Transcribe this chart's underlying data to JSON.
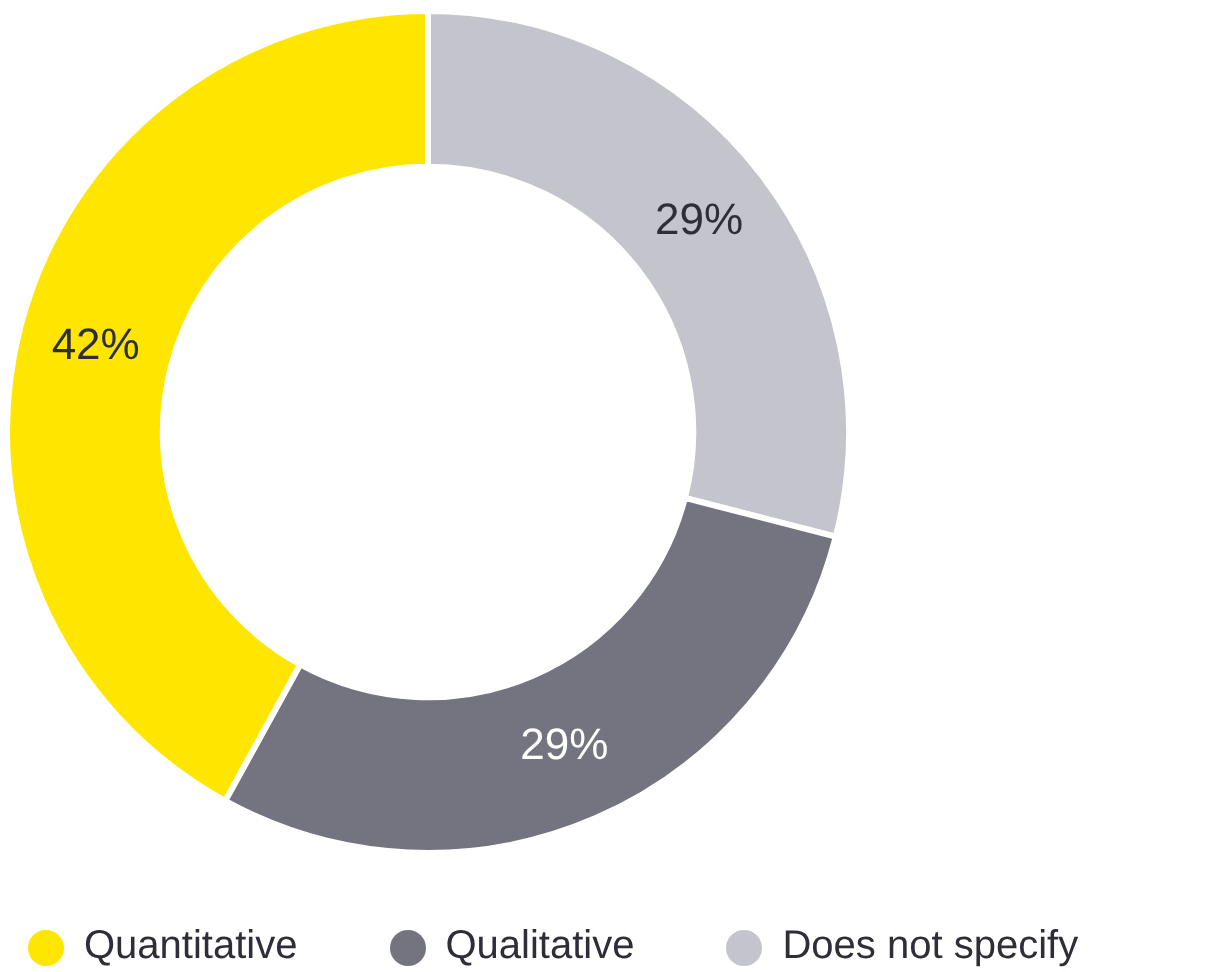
{
  "chart_data": {
    "type": "donut",
    "categories": [
      "Quantitative",
      "Qualitative",
      "Does not specify"
    ],
    "values": [
      42,
      29,
      29
    ],
    "value_labels": [
      "42%",
      "29%",
      "29%"
    ],
    "colors": [
      "#ffe600",
      "#747480",
      "#c4c4cd"
    ],
    "legend": "bottom"
  }
}
